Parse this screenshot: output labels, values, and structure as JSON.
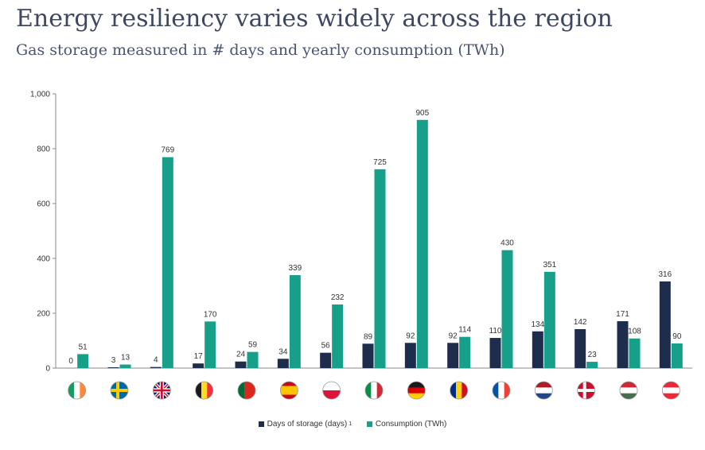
{
  "header": {
    "title": "Energy resiliency varies widely across the region",
    "subtitle": "Gas storage measured in # days and yearly consumption (TWh)"
  },
  "colors": {
    "storage": "#1f2d4d",
    "consumption": "#16a08a",
    "axis": "#888888",
    "text": "#333333"
  },
  "legend": {
    "storage_label": "Days of storage (days)",
    "storage_footnote": "1",
    "consumption_label": "Consumption (TWh)"
  },
  "chart_data": {
    "type": "bar",
    "categories": [
      "ireland-flag-icon",
      "sweden-flag-icon",
      "uk-flag-icon",
      "belgium-flag-icon",
      "portugal-flag-icon",
      "spain-flag-icon",
      "poland-flag-icon",
      "italy-flag-icon",
      "germany-flag-icon",
      "romania-flag-icon",
      "france-flag-icon",
      "netherlands-flag-icon",
      "denmark-flag-icon",
      "hungary-flag-icon",
      "austria-flag-icon"
    ],
    "series": [
      {
        "name": "Days of storage (days)",
        "values": [
          0,
          3,
          4,
          17,
          24,
          34,
          56,
          89,
          92,
          92,
          110,
          134,
          142,
          171,
          316
        ]
      },
      {
        "name": "Consumption (TWh)",
        "values": [
          51,
          13,
          769,
          170,
          59,
          339,
          232,
          725,
          905,
          114,
          430,
          351,
          23,
          108,
          90
        ]
      }
    ],
    "yticks": [
      "0",
      "200",
      "400",
      "600",
      "800",
      "1,000"
    ],
    "ylim": [
      0,
      1000
    ],
    "grid": false,
    "legend_position": "bottom-center"
  }
}
